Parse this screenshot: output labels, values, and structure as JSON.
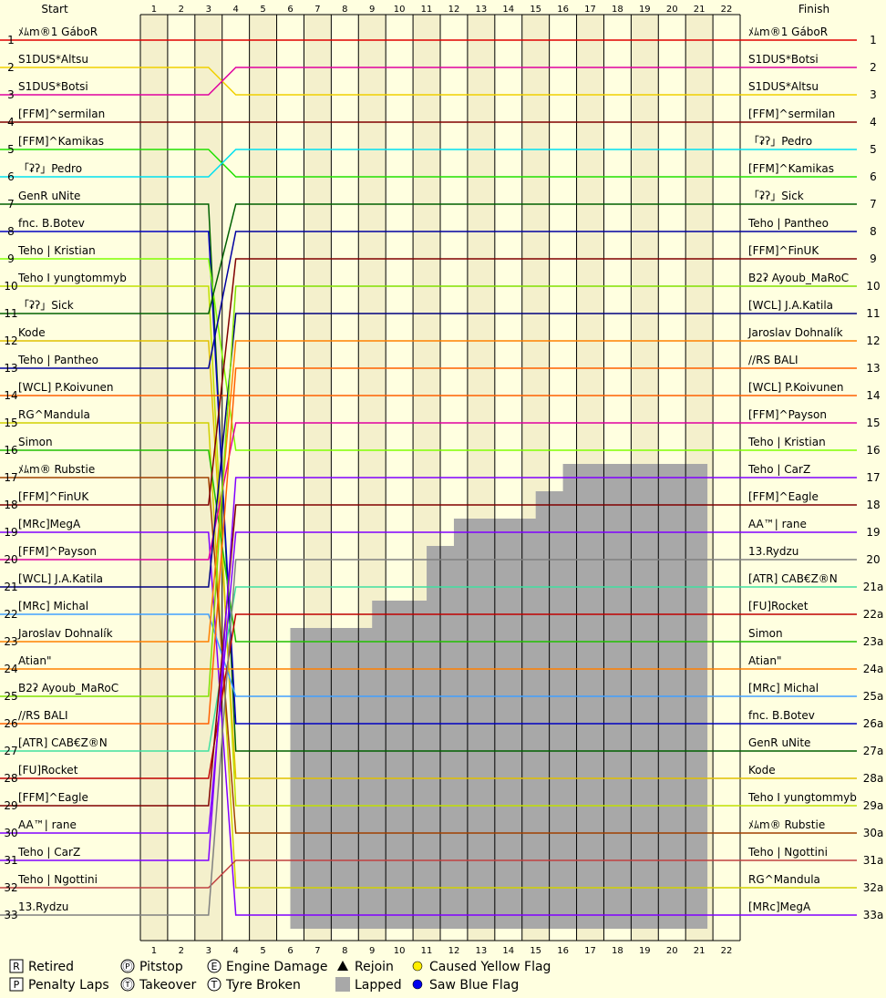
{
  "chart_data": {
    "type": "lap-position",
    "header": {
      "start_label": "Start",
      "finish_label": "Finish"
    },
    "laps": 22,
    "positions": 33,
    "lap_labels": [
      "1",
      "2",
      "3",
      "4",
      "5",
      "6",
      "7",
      "8",
      "9",
      "10",
      "11",
      "12",
      "13",
      "14",
      "15",
      "16",
      "17",
      "18",
      "19",
      "20",
      "21",
      "22"
    ],
    "position_labels": [
      "1",
      "2",
      "3",
      "4",
      "5",
      "6",
      "7",
      "8",
      "9",
      "10",
      "11",
      "12",
      "13",
      "14",
      "15",
      "16",
      "17",
      "18",
      "19",
      "20",
      "21",
      "22",
      "23",
      "24",
      "25",
      "26",
      "27",
      "28",
      "29",
      "30",
      "31",
      "32",
      "33"
    ],
    "right_position_labels": [
      "1",
      "2",
      "3",
      "4",
      "5",
      "6",
      "7",
      "8",
      "9",
      "10",
      "11",
      "12",
      "13",
      "14",
      "15",
      "16",
      "17",
      "18",
      "19",
      "20",
      "21a",
      "22a",
      "23a",
      "24a",
      "25a",
      "26a",
      "27a",
      "28a",
      "29a",
      "30a",
      "31a",
      "32a",
      "33a"
    ],
    "start_grid": [
      "ﾒﾑm®1 GáboR",
      "S1DUS*Altsu",
      "S1DUS*Botsi",
      "[FFM]^sermilan",
      "[FFM]^Kamikas",
      "「ʡʔ」Pedro",
      "GenR uNite",
      "fnc. B.Botev",
      "Teho | Kristian",
      "Teho I yungtommyb",
      "「ʡʔ」Sick",
      "Kode",
      "Teho | Pantheo",
      "[WCL] P.Koivunen",
      "RG^Mandula",
      "Simon",
      "ﾒﾑm® Rubstie",
      "[FFM]^FinUK",
      "[MRc]MegA",
      "[FFM]^Payson",
      "[WCL] J.A.Katila",
      "[MRc] Michal",
      "Jaroslav Dohnalík",
      "Atian\"",
      "B2ʡ Ayoub_MaRoC",
      "//RS BALI",
      "[ATR] CAB€Z®N",
      "[FU]Rocket",
      "[FFM]^Eagle",
      "AA™| rane",
      "Teho | CarZ",
      "Teho | Ngottini",
      "13.Rydzu"
    ],
    "finish_order": [
      "ﾒﾑm®1 GáboR",
      "S1DUS*Botsi",
      "S1DUS*Altsu",
      "[FFM]^sermilan",
      "「ʡʔ」Pedro",
      "[FFM]^Kamikas",
      "「ʡʔ」Sick",
      "Teho | Pantheo",
      "[FFM]^FinUK",
      "B2ʡ Ayoub_MaRoC",
      "[WCL] J.A.Katila",
      "Jaroslav Dohnalík",
      "//RS BALI",
      "[WCL] P.Koivunen",
      "[FFM]^Payson",
      "Teho | Kristian",
      "Teho | CarZ",
      "[FFM]^Eagle",
      "AA™| rane",
      "13.Rydzu",
      "[ATR] CAB€Z®N",
      "[FU]Rocket",
      "Simon",
      "Atian\"",
      "[MRc] Michal",
      "fnc. B.Botev",
      "GenR uNite",
      "Kode",
      "Teho I yungtommyb",
      "ﾒﾑm® Rubstie",
      "Teho | Ngottini",
      "RG^Mandula",
      "[MRc]MegA"
    ],
    "colors": [
      "#e00000",
      "#f0d000",
      "#e000a0",
      "#800000",
      "#20e000",
      "#00e0f0",
      "#006000",
      "#0000c0",
      "#80ff00",
      "#c0e000",
      "#006000",
      "#e0c000",
      "#0000a0",
      "#ff6000",
      "#d0d000",
      "#20c000",
      "#a04000",
      "#800000",
      "#8000ff",
      "#e000a0",
      "#000080",
      "#40a0ff",
      "#ff8000",
      "#ff8000",
      "#80e000",
      "#ff6000",
      "#40e0a0",
      "#c00000",
      "#800000",
      "#8000ff",
      "#8000ff",
      "#c04040",
      "#808080"
    ],
    "lapped_from_lap": [
      null,
      null,
      null,
      null,
      null,
      null,
      null,
      null,
      null,
      null,
      null,
      null,
      null,
      null,
      null,
      null,
      15.5,
      14.5,
      11.5,
      10.5,
      10.5,
      8.5,
      5.5,
      5.5,
      5.5,
      5.5,
      5.5,
      5.5,
      5.5,
      5.5,
      5.5,
      5.5,
      5.5
    ],
    "legend": [
      {
        "symbol": "R",
        "label": "Retired"
      },
      {
        "symbol": "P",
        "label": "Penalty Laps"
      },
      {
        "symbol": "Ⓟ",
        "label": "Pitstop"
      },
      {
        "symbol": "Ⓣ",
        "label": "Takeover"
      },
      {
        "symbol": "E",
        "label": "Engine Damage"
      },
      {
        "symbol": "T",
        "label": "Tyre Broken"
      },
      {
        "symbol": "▲",
        "label": "Rejoin"
      },
      {
        "symbol": "",
        "label": "Lapped"
      },
      {
        "symbol": "●",
        "label": "Caused Yellow Flag"
      },
      {
        "symbol": "●",
        "label": "Saw Blue Flag"
      }
    ],
    "legend_colors": {
      "yellow_flag": "#ffee00",
      "blue_flag": "#0000ee",
      "lapped": "#a8a8a8"
    }
  }
}
